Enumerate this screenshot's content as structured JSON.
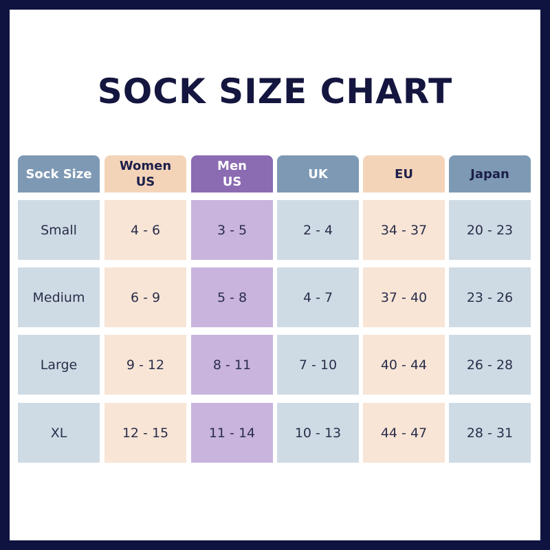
{
  "title": "SOCK SIZE CHART",
  "table": {
    "header": [
      "Sock Size",
      "Women\nUS",
      "Men\nUS",
      "UK",
      "EU",
      "Japan"
    ],
    "rows": [
      [
        "Small",
        "4 - 6",
        "3 - 5",
        "2 - 4",
        "34 - 37",
        "20 - 23"
      ],
      [
        "Medium",
        "6 - 9",
        "5 - 8",
        "4 - 7",
        "37 - 40",
        "23 - 26"
      ],
      [
        "Large",
        "9 - 12",
        "8 - 11",
        "7 - 10",
        "40 - 44",
        "26 - 28"
      ],
      [
        "XL",
        "12 - 15",
        "11 - 14",
        "10 - 13",
        "44 - 47",
        "28 - 31"
      ]
    ]
  }
}
